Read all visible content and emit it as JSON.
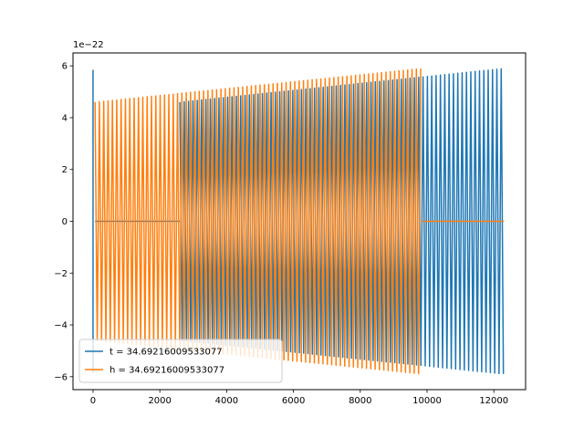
{
  "chart_data": {
    "type": "line",
    "title": "",
    "xlabel": "",
    "ylabel": "",
    "y_offset_label": "1e−22",
    "xlim": [
      -600,
      12950
    ],
    "ylim": [
      -6.5,
      6.5
    ],
    "x_ticks": [
      0,
      2000,
      4000,
      6000,
      8000,
      10000,
      12000
    ],
    "x_tick_labels": [
      "0",
      "2000",
      "4000",
      "6000",
      "8000",
      "10000",
      "12000"
    ],
    "y_ticks": [
      -6,
      -4,
      -2,
      0,
      2,
      4,
      6
    ],
    "y_tick_labels": [
      "−6",
      "−4",
      "−2",
      "0",
      "2",
      "4",
      "6"
    ],
    "grid": false,
    "legend_position": "lower-left",
    "series": [
      {
        "name": "t = 34.69216009533077",
        "color": "#1f77b4",
        "segments": [
          {
            "x_start": 0,
            "x_end": 10,
            "amp_start": 5.85,
            "amp_end": 5.85,
            "oscillating": false
          },
          {
            "x_start": 60,
            "x_end": 2600,
            "amp_start": 0,
            "amp_end": 0,
            "oscillating": false
          },
          {
            "x_start": 2600,
            "x_end": 12300,
            "amp_start": 4.6,
            "amp_end": 5.9,
            "oscillating": true,
            "period": 130
          }
        ]
      },
      {
        "name": "h = 34.69216009533077",
        "color": "#ff7f0e",
        "segments": [
          {
            "x_start": 60,
            "x_end": 9850,
            "amp_start": 4.6,
            "amp_end": 5.9,
            "oscillating": true,
            "period": 130
          },
          {
            "x_start": 9850,
            "x_end": 12300,
            "amp_start": 0,
            "amp_end": 0,
            "oscillating": false
          }
        ]
      }
    ]
  }
}
